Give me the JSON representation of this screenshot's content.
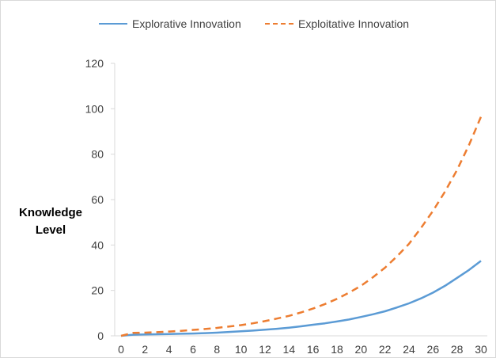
{
  "chart_data": {
    "type": "line",
    "title": "",
    "xlabel": "",
    "ylabel": "Knowledge Level",
    "ylabel_lines": [
      "Knowledge",
      "Level"
    ],
    "xlim": [
      0,
      30
    ],
    "ylim": [
      0,
      120
    ],
    "x_ticks": [
      0,
      2,
      4,
      6,
      8,
      10,
      12,
      14,
      16,
      18,
      20,
      22,
      24,
      26,
      28,
      30
    ],
    "y_ticks": [
      0,
      20,
      40,
      60,
      80,
      100,
      120
    ],
    "grid": false,
    "legend_position": "top",
    "x": [
      0,
      1,
      2,
      3,
      4,
      5,
      6,
      7,
      8,
      9,
      10,
      11,
      12,
      13,
      14,
      15,
      16,
      17,
      18,
      19,
      20,
      21,
      22,
      23,
      24,
      25,
      26,
      27,
      28,
      29,
      30
    ],
    "series": [
      {
        "name": "Explorative Innovation",
        "style": "solid",
        "color": "#5b9bd5",
        "values": [
          0,
          0.5,
          0.6,
          0.7,
          0.8,
          0.9,
          1.0,
          1.2,
          1.4,
          1.7,
          2.0,
          2.3,
          2.7,
          3.1,
          3.6,
          4.2,
          4.9,
          5.5,
          6.3,
          7.2,
          8.3,
          9.5,
          10.8,
          12.5,
          14.3,
          16.5,
          19.0,
          22.0,
          25.5,
          29.0,
          33.0
        ]
      },
      {
        "name": "Exploitative Innovation",
        "style": "dashed",
        "color": "#ed7d31",
        "values": [
          0,
          1.3,
          1.4,
          1.6,
          1.9,
          2.2,
          2.6,
          3.0,
          3.5,
          4.1,
          4.7,
          5.5,
          6.5,
          7.6,
          8.8,
          10.3,
          12.0,
          14.0,
          16.3,
          19.0,
          22.0,
          25.8,
          30.0,
          35.0,
          40.5,
          47.5,
          55.0,
          63.5,
          73.0,
          84.0,
          96.5
        ]
      }
    ]
  }
}
